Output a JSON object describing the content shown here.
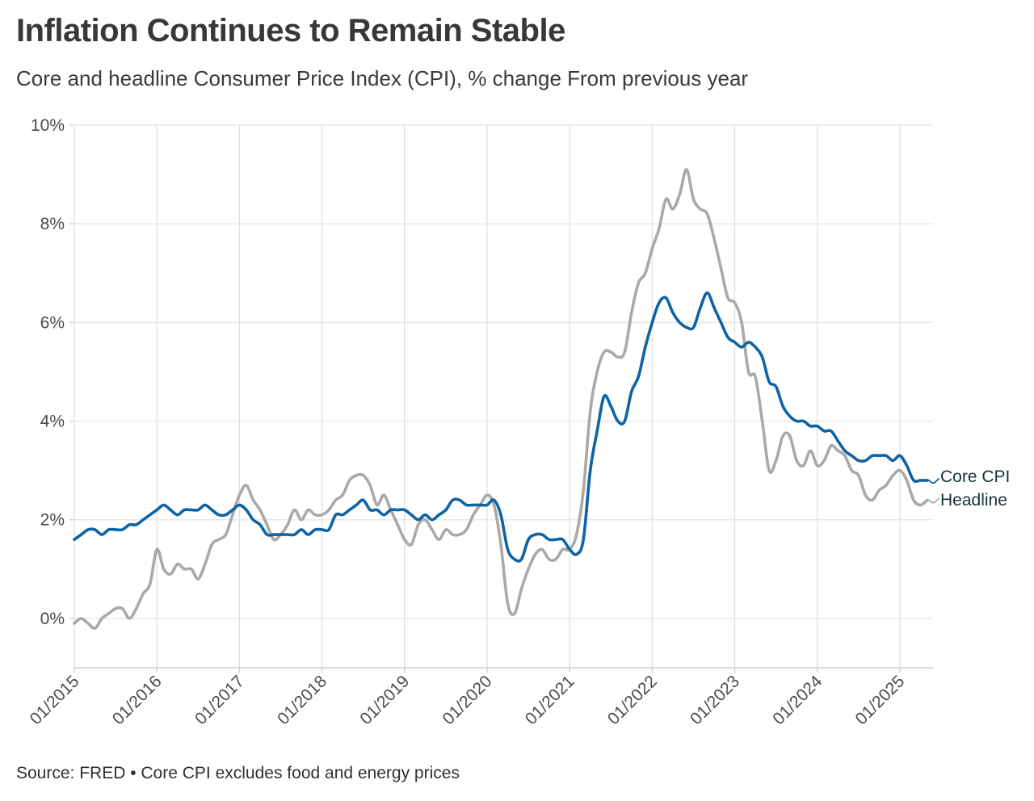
{
  "header": {
    "title": "Inflation Continues to Remain Stable",
    "subtitle": "Core and headline Consumer Price Index (CPI), % change From previous year"
  },
  "footer": {
    "source": "Source: FRED • Core CPI excludes food and energy prices"
  },
  "colors": {
    "core_line": "#0e63a5",
    "headline_line": "#a9a9a9",
    "h_gridline": "#e8e8e8",
    "v_gridline": "#dedede",
    "axis": "#cfcfcf",
    "tick_label": "#4b4b4b",
    "end_label": "#16343b"
  },
  "chart_data": {
    "type": "line",
    "title": "Inflation Continues to Remain Stable",
    "subtitle": "Core and headline Consumer Price Index (CPI), % change From previous year",
    "xlabel": "",
    "ylabel": "",
    "ylim": [
      -1.0,
      10
    ],
    "grid": true,
    "legend_position": "right-end-labels",
    "x_start": "01/2015",
    "x_end": "05/2025",
    "frequency": "monthly",
    "y_ticks": [
      {
        "label": "0%",
        "value": 0
      },
      {
        "label": "2%",
        "value": 2
      },
      {
        "label": "4%",
        "value": 4
      },
      {
        "label": "6%",
        "value": 6
      },
      {
        "label": "8%",
        "value": 8
      },
      {
        "label": "10%",
        "value": 10
      }
    ],
    "x_ticks": [
      {
        "label": "01/2015",
        "month_index": 0
      },
      {
        "label": "01/2016",
        "month_index": 12
      },
      {
        "label": "01/2017",
        "month_index": 24
      },
      {
        "label": "01/2018",
        "month_index": 36
      },
      {
        "label": "01/2019",
        "month_index": 48
      },
      {
        "label": "01/2020",
        "month_index": 60
      },
      {
        "label": "01/2021",
        "month_index": 72
      },
      {
        "label": "01/2022",
        "month_index": 84
      },
      {
        "label": "01/2023",
        "month_index": 96
      },
      {
        "label": "01/2024",
        "month_index": 108
      },
      {
        "label": "01/2025",
        "month_index": 120
      }
    ],
    "series": [
      {
        "name": "Core CPI",
        "color": "#0e63a5",
        "values": [
          1.6,
          1.7,
          1.8,
          1.8,
          1.7,
          1.8,
          1.8,
          1.8,
          1.9,
          1.9,
          2.0,
          2.1,
          2.2,
          2.3,
          2.2,
          2.1,
          2.2,
          2.2,
          2.2,
          2.3,
          2.2,
          2.1,
          2.1,
          2.2,
          2.3,
          2.2,
          2.0,
          1.9,
          1.7,
          1.7,
          1.7,
          1.7,
          1.7,
          1.8,
          1.7,
          1.8,
          1.8,
          1.8,
          2.1,
          2.1,
          2.2,
          2.3,
          2.4,
          2.2,
          2.2,
          2.1,
          2.2,
          2.2,
          2.2,
          2.1,
          2.0,
          2.1,
          2.0,
          2.1,
          2.2,
          2.4,
          2.4,
          2.3,
          2.3,
          2.3,
          2.3,
          2.4,
          2.1,
          1.4,
          1.2,
          1.2,
          1.6,
          1.7,
          1.7,
          1.6,
          1.6,
          1.6,
          1.4,
          1.3,
          1.6,
          3.0,
          3.8,
          4.5,
          4.3,
          4.0,
          4.0,
          4.6,
          4.9,
          5.5,
          6.0,
          6.4,
          6.5,
          6.2,
          6.0,
          5.9,
          5.9,
          6.3,
          6.6,
          6.3,
          6.0,
          5.7,
          5.6,
          5.5,
          5.6,
          5.5,
          5.3,
          4.8,
          4.7,
          4.3,
          4.1,
          4.0,
          4.0,
          3.9,
          3.9,
          3.8,
          3.8,
          3.6,
          3.4,
          3.3,
          3.2,
          3.2,
          3.3,
          3.3,
          3.3,
          3.2,
          3.3,
          3.1,
          2.8,
          2.8,
          2.8
        ]
      },
      {
        "name": "Headline",
        "color": "#a9a9a9",
        "values": [
          -0.1,
          0.0,
          -0.1,
          -0.2,
          0.0,
          0.1,
          0.2,
          0.2,
          0.0,
          0.2,
          0.5,
          0.7,
          1.4,
          1.0,
          0.9,
          1.1,
          1.0,
          1.0,
          0.8,
          1.1,
          1.5,
          1.6,
          1.7,
          2.1,
          2.5,
          2.7,
          2.4,
          2.2,
          1.9,
          1.6,
          1.7,
          1.9,
          2.2,
          2.0,
          2.2,
          2.1,
          2.1,
          2.2,
          2.4,
          2.5,
          2.8,
          2.9,
          2.9,
          2.7,
          2.3,
          2.5,
          2.2,
          1.9,
          1.6,
          1.5,
          1.9,
          2.0,
          1.8,
          1.6,
          1.8,
          1.7,
          1.7,
          1.8,
          2.1,
          2.3,
          2.5,
          2.3,
          1.5,
          0.3,
          0.1,
          0.6,
          1.0,
          1.3,
          1.4,
          1.2,
          1.2,
          1.4,
          1.4,
          1.7,
          2.6,
          4.2,
          5.0,
          5.4,
          5.4,
          5.3,
          5.4,
          6.2,
          6.8,
          7.0,
          7.5,
          7.9,
          8.5,
          8.3,
          8.6,
          9.1,
          8.5,
          8.3,
          8.2,
          7.7,
          7.1,
          6.5,
          6.4,
          6.0,
          5.0,
          4.9,
          4.0,
          3.0,
          3.2,
          3.7,
          3.7,
          3.2,
          3.1,
          3.4,
          3.1,
          3.2,
          3.5,
          3.4,
          3.3,
          3.0,
          2.9,
          2.5,
          2.4,
          2.6,
          2.7,
          2.9,
          3.0,
          2.8,
          2.4,
          2.3,
          2.4
        ]
      }
    ]
  }
}
